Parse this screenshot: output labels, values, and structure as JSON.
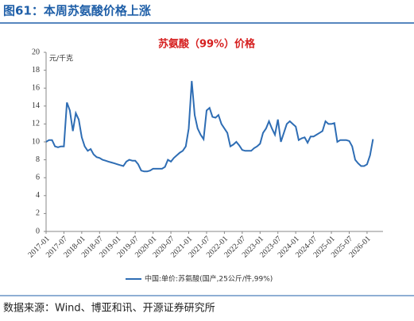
{
  "header": {
    "title": "图61：本周苏氨酸价格上涨"
  },
  "chart_data": {
    "type": "line",
    "title": "苏氨酸（99%）价格",
    "y_label": "元/千克",
    "x": [
      "2017-01",
      "2017-02",
      "2017-03",
      "2017-04",
      "2017-05",
      "2017-06",
      "2017-07",
      "2017-08",
      "2017-09",
      "2017-10",
      "2017-11",
      "2017-12",
      "2018-01",
      "2018-02",
      "2018-03",
      "2018-04",
      "2018-05",
      "2018-06",
      "2018-07",
      "2018-08",
      "2018-09",
      "2018-10",
      "2018-11",
      "2018-12",
      "2019-01",
      "2019-02",
      "2019-03",
      "2019-04",
      "2019-05",
      "2019-06",
      "2019-07",
      "2019-08",
      "2019-09",
      "2019-10",
      "2019-11",
      "2019-12",
      "2020-01",
      "2020-02",
      "2020-03",
      "2020-04",
      "2020-05",
      "2020-06",
      "2020-07",
      "2020-08",
      "2020-09",
      "2020-10",
      "2020-11",
      "2020-12",
      "2021-01",
      "2021-02",
      "2021-03",
      "2021-04",
      "2021-05",
      "2021-06",
      "2021-07",
      "2021-08",
      "2021-09",
      "2021-10",
      "2021-11",
      "2021-12",
      "2022-01",
      "2022-02",
      "2022-03",
      "2022-04",
      "2022-05",
      "2022-06",
      "2022-07",
      "2022-08",
      "2022-09",
      "2022-10",
      "2022-11",
      "2022-12",
      "2023-01",
      "2023-02",
      "2023-03",
      "2023-04",
      "2023-05",
      "2023-06",
      "2023-07",
      "2023-08",
      "2023-09",
      "2023-10",
      "2023-11",
      "2023-12",
      "2024-01",
      "2024-02",
      "2024-03",
      "2024-04",
      "2024-05",
      "2024-06",
      "2024-07",
      "2024-08",
      "2024-09",
      "2024-10",
      "2024-11",
      "2024-12",
      "2025-01",
      "2025-02",
      "2025-03",
      "2025-04",
      "2025-05",
      "2025-06",
      "2025-07",
      "2025-08",
      "2025-09",
      "2025-10",
      "2025-11",
      "2025-12",
      "2026-01",
      "2026-02",
      "2026-03"
    ],
    "series": [
      {
        "name": "中国:单价:苏氨酸(国产,25公斤/件,99%)",
        "color": "#2e6db4",
        "values": [
          10.0,
          10.2,
          10.2,
          9.5,
          9.4,
          9.5,
          9.5,
          14.4,
          13.5,
          11.2,
          13.2,
          12.5,
          10.5,
          9.5,
          9.0,
          9.2,
          8.6,
          8.3,
          8.2,
          8.0,
          7.9,
          7.8,
          7.7,
          7.6,
          7.5,
          7.4,
          7.3,
          7.8,
          8.0,
          7.9,
          7.9,
          7.5,
          6.8,
          6.7,
          6.7,
          6.8,
          7.0,
          7.0,
          7.0,
          7.0,
          7.2,
          8.0,
          7.8,
          8.2,
          8.5,
          8.8,
          9.0,
          9.5,
          11.5,
          16.8,
          13.0,
          11.5,
          10.8,
          10.3,
          13.5,
          13.8,
          12.8,
          12.7,
          13.0,
          12.0,
          11.5,
          11.0,
          9.5,
          9.7,
          10.0,
          9.6,
          9.1,
          9.0,
          9.0,
          9.0,
          9.3,
          9.5,
          9.8,
          11.0,
          11.5,
          12.3,
          11.5,
          10.8,
          12.5,
          10.0,
          11.0,
          12.0,
          12.3,
          12.0,
          11.7,
          10.2,
          10.4,
          10.5,
          9.9,
          10.6,
          10.6,
          10.8,
          11.0,
          11.2,
          12.3,
          12.0,
          12.0,
          12.1,
          10.0,
          10.2,
          10.2,
          10.2,
          10.1,
          9.5,
          8.0,
          7.6,
          7.3,
          7.3,
          7.5,
          8.5,
          10.3
        ]
      }
    ],
    "ylim": [
      0,
      20
    ],
    "yticks": [
      0,
      2,
      4,
      6,
      8,
      10,
      12,
      14,
      16,
      18,
      20
    ]
  },
  "source": "数据来源：Wind、博亚和讯、开源证券研究所"
}
